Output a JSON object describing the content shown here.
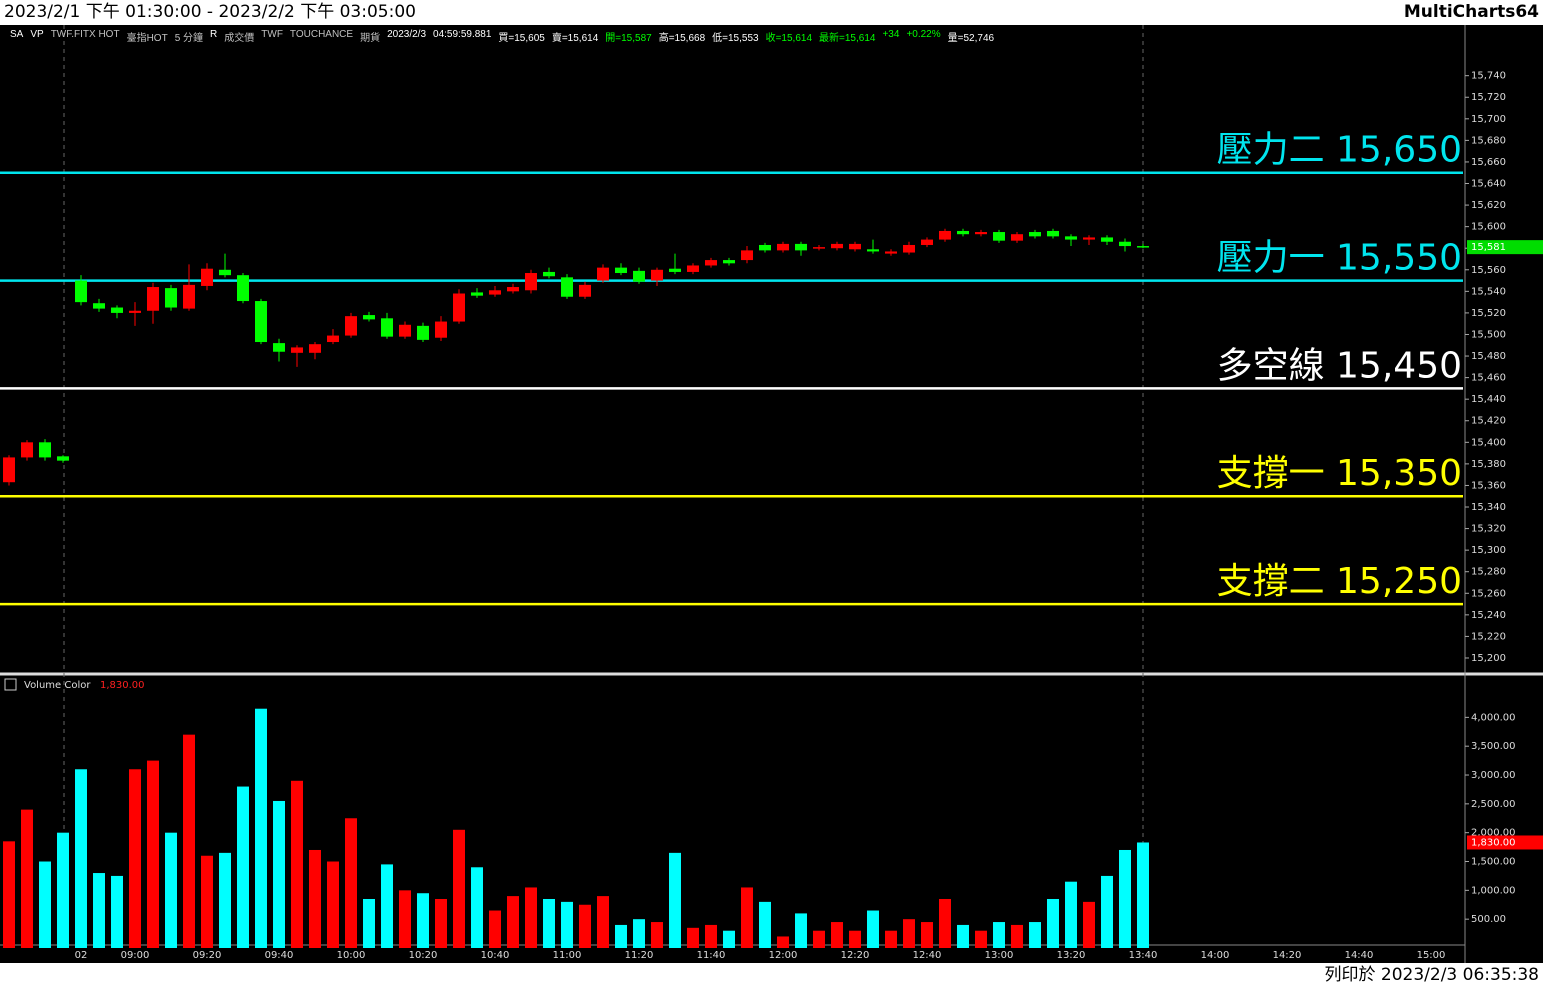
{
  "header": {
    "title": "2023/2/1 下午 01:30:00 - 2023/2/2 下午 03:05:00",
    "app": "MultiCharts64"
  },
  "info": [
    {
      "text": "SA",
      "color": "#ffffff"
    },
    {
      "text": "VP",
      "color": "#ffffff"
    },
    {
      "text": "TWF.FITX HOT",
      "color": "#c0c0c0"
    },
    {
      "text": "臺指HOT",
      "color": "#c0c0c0"
    },
    {
      "text": "5 分鐘",
      "color": "#c0c0c0"
    },
    {
      "text": "R",
      "color": "#ffffff"
    },
    {
      "text": "成交價",
      "color": "#c0c0c0"
    },
    {
      "text": "TWF",
      "color": "#c0c0c0"
    },
    {
      "text": "TOUCHANCE",
      "color": "#c0c0c0"
    },
    {
      "text": "期貨",
      "color": "#c0c0c0"
    },
    {
      "text": "2023/2/3",
      "color": "#ffffff"
    },
    {
      "text": "04:59:59.881",
      "color": "#ffffff"
    },
    {
      "text": "買=15,605",
      "color": "#ffffff"
    },
    {
      "text": "賣=15,614",
      "color": "#ffffff"
    },
    {
      "text": "開=15,587",
      "color": "#00ff00"
    },
    {
      "text": "高=15,668",
      "color": "#ffffff"
    },
    {
      "text": "低=15,553",
      "color": "#ffffff"
    },
    {
      "text": "收=15,614",
      "color": "#00ff00"
    },
    {
      "text": "最新=15,614",
      "color": "#00ff00"
    },
    {
      "text": "+34",
      "color": "#00ff00"
    },
    {
      "text": "+0.22%",
      "color": "#00ff00"
    },
    {
      "text": "量=52,746",
      "color": "#ffffff"
    }
  ],
  "footer": "列印於 2023/2/3 06:35:38",
  "chart_data": [
    {
      "type": "candlestick",
      "up_color": "#ff0000",
      "down_color": "#00ff00",
      "categories": [
        null,
        null,
        null,
        null,
        "02",
        null,
        null,
        "09:00",
        null,
        null,
        null,
        "09:20",
        null,
        null,
        null,
        "09:40",
        null,
        null,
        null,
        "10:00",
        null,
        null,
        null,
        "10:20",
        null,
        null,
        null,
        "10:40",
        null,
        null,
        null,
        "11:00",
        null,
        null,
        null,
        "11:20",
        null,
        null,
        null,
        "11:40",
        null,
        null,
        null,
        "12:00",
        null,
        null,
        null,
        "12:20",
        null,
        null,
        null,
        "12:40",
        null,
        null,
        null,
        "13:00",
        null,
        null,
        null,
        "13:20",
        null,
        null,
        null,
        "13:40",
        null,
        null,
        null,
        "14:00",
        null,
        null,
        null,
        "14:20",
        null,
        null,
        null,
        "14:40",
        null,
        null,
        null,
        "15:00",
        null
      ],
      "open": [
        15363,
        15386,
        15400,
        15387,
        15550,
        15529,
        15525,
        15520,
        15522,
        15543,
        15524,
        15545,
        15560,
        15555,
        15531,
        15492,
        15483,
        15483,
        15493,
        15499,
        15518,
        15515,
        15498,
        15508,
        15497,
        15512,
        15539,
        15537,
        15540,
        15541,
        15558,
        15553,
        15535,
        15550,
        15562,
        15559,
        15550,
        15561,
        15558,
        15564,
        15569,
        15569,
        15583,
        15578,
        15584,
        15580,
        15580,
        15579,
        15579,
        15575,
        15576,
        15583,
        15588,
        15596,
        15593,
        15595,
        15587,
        15595,
        15596,
        15591,
        15588,
        15590,
        15586,
        15582,
        null,
        null,
        null,
        null,
        null,
        null,
        null,
        null,
        null,
        null,
        null,
        null,
        null,
        null,
        null,
        null,
        null
      ],
      "high": [
        15388,
        15402,
        15403,
        15388,
        15555,
        15533,
        15527,
        15530,
        15548,
        15546,
        15565,
        15566,
        15575,
        15557,
        15533,
        15496,
        15490,
        15493,
        15505,
        15520,
        15521,
        15520,
        15512,
        15511,
        15517,
        15542,
        15543,
        15545,
        15547,
        15560,
        15562,
        15556,
        15549,
        15565,
        15566,
        15562,
        15562,
        15575,
        15566,
        15571,
        15571,
        15582,
        15585,
        15586,
        15586,
        15583,
        15586,
        15586,
        15588,
        15579,
        15586,
        15590,
        15598,
        15598,
        15597,
        15597,
        15595,
        15597,
        15598,
        15593,
        15592,
        15592,
        15589,
        15584,
        null,
        null,
        null,
        null,
        null,
        null,
        null,
        null,
        null,
        null,
        null,
        null,
        null,
        null,
        null,
        null,
        null
      ],
      "low": [
        15360,
        15383,
        15383,
        15381,
        15527,
        15521,
        15515,
        15508,
        15510,
        15522,
        15522,
        15541,
        15553,
        15529,
        15491,
        15475,
        15470,
        15477,
        15491,
        15497,
        15512,
        15496,
        15496,
        15493,
        15494,
        15510,
        15534,
        15535,
        15538,
        15538,
        15552,
        15533,
        15533,
        15548,
        15555,
        15547,
        15545,
        15556,
        15556,
        15562,
        15564,
        15566,
        15576,
        15576,
        15573,
        15578,
        15578,
        15577,
        15575,
        15573,
        15574,
        15581,
        15586,
        15591,
        15591,
        15585,
        15585,
        15589,
        15589,
        15582,
        15583,
        15583,
        15577,
        15580,
        null,
        null,
        null,
        null,
        null,
        null,
        null,
        null,
        null,
        null,
        null,
        null,
        null,
        null,
        null,
        null,
        null
      ],
      "close": [
        15386,
        15400,
        15386,
        15383,
        15530,
        15524,
        15520,
        15522,
        15544,
        15525,
        15546,
        15561,
        15555,
        15531,
        15493,
        15484,
        15488,
        15491,
        15499,
        15517,
        15514,
        15498,
        15509,
        15495,
        15512,
        15538,
        15536,
        15541,
        15544,
        15557,
        15554,
        15535,
        15546,
        15562,
        15557,
        15549,
        15560,
        15558,
        15564,
        15569,
        15566,
        15578,
        15578,
        15584,
        15578,
        15581,
        15584,
        15584,
        15577,
        15577,
        15583,
        15588,
        15596,
        15593,
        15595,
        15587,
        15593,
        15591,
        15591,
        15588,
        15590,
        15586,
        15582,
        15581,
        null,
        null,
        null,
        null,
        null,
        null,
        null,
        null,
        null,
        null,
        null,
        null,
        null,
        null,
        null,
        null,
        null
      ],
      "ylim": [
        15187,
        15787
      ],
      "yticks": [
        {
          "value": 15200,
          "label": "15,200"
        },
        {
          "value": 15220,
          "label": "15,220"
        },
        {
          "value": 15240,
          "label": "15,240"
        },
        {
          "value": 15260,
          "label": "15,260"
        },
        {
          "value": 15280,
          "label": "15,280"
        },
        {
          "value": 15300,
          "label": "15,300"
        },
        {
          "value": 15320,
          "label": "15,320"
        },
        {
          "value": 15340,
          "label": "15,340"
        },
        {
          "value": 15360,
          "label": "15,360"
        },
        {
          "value": 15380,
          "label": "15,380"
        },
        {
          "value": 15400,
          "label": "15,400"
        },
        {
          "value": 15420,
          "label": "15,420"
        },
        {
          "value": 15440,
          "label": "15,440"
        },
        {
          "value": 15460,
          "label": "15,460"
        },
        {
          "value": 15480,
          "label": "15,480"
        },
        {
          "value": 15500,
          "label": "15,500"
        },
        {
          "value": 15520,
          "label": "15,520"
        },
        {
          "value": 15540,
          "label": "15,540"
        },
        {
          "value": 15560,
          "label": "15,560"
        },
        {
          "value": 15580,
          "label": "15,580"
        },
        {
          "value": 15600,
          "label": "15,600"
        },
        {
          "value": 15620,
          "label": "15,620"
        },
        {
          "value": 15640,
          "label": "15,640"
        },
        {
          "value": 15660,
          "label": "15,660"
        },
        {
          "value": 15680,
          "label": "15,680"
        },
        {
          "value": 15700,
          "label": "15,700"
        },
        {
          "value": 15720,
          "label": "15,720"
        },
        {
          "value": 15740,
          "label": "15,740"
        }
      ],
      "levels": [
        {
          "name": "壓力二",
          "value": 15650,
          "value_label": "15,650",
          "color": "#00e5ee"
        },
        {
          "name": "壓力一",
          "value": 15550,
          "value_label": "15,550",
          "color": "#00e5ee"
        },
        {
          "name": "多空線",
          "value": 15450,
          "value_label": "15,450",
          "color": "#ffffff"
        },
        {
          "name": "支撐一",
          "value": 15350,
          "value_label": "15,350",
          "color": "#ffff00"
        },
        {
          "name": "支撐二",
          "value": 15250,
          "value_label": "15,250",
          "color": "#ffff00"
        }
      ],
      "last": {
        "value": 15581,
        "label": "15,581",
        "color": "#00dd00"
      }
    },
    {
      "type": "bar",
      "legend": "Volume Color",
      "up_color": "#ff0000",
      "down_color": "#00ffff",
      "values": [
        1850,
        2400,
        1500,
        2000,
        3100,
        1300,
        1250,
        3100,
        3250,
        2000,
        3700,
        1600,
        1650,
        2800,
        4150,
        2550,
        2900,
        1700,
        1500,
        2250,
        850,
        1450,
        1000,
        950,
        850,
        2050,
        1400,
        650,
        900,
        1050,
        850,
        800,
        750,
        900,
        400,
        500,
        450,
        1650,
        350,
        400,
        300,
        1050,
        800,
        200,
        600,
        300,
        450,
        300,
        650,
        300,
        500,
        450,
        850,
        400,
        300,
        450,
        400,
        450,
        850,
        1150,
        800,
        1250,
        1700,
        1830,
        null,
        null,
        null,
        null,
        null,
        null,
        null,
        null,
        null,
        null,
        null,
        null,
        null,
        null,
        null,
        null,
        null
      ],
      "ylim": [
        0,
        4700
      ],
      "yticks": [
        {
          "value": 500,
          "label": "500.00"
        },
        {
          "value": 1000,
          "label": "1,000.00"
        },
        {
          "value": 1500,
          "label": "1,500.00"
        },
        {
          "value": 2000,
          "label": "2,000.00"
        },
        {
          "value": 2500,
          "label": "2,500.00"
        },
        {
          "value": 3000,
          "label": "3,000.00"
        },
        {
          "value": 3500,
          "label": "3,500.00"
        },
        {
          "value": 4000,
          "label": "4,000.00"
        }
      ],
      "last": {
        "value": 1830,
        "label": "1,830.00",
        "color": "#ff0000"
      }
    }
  ]
}
